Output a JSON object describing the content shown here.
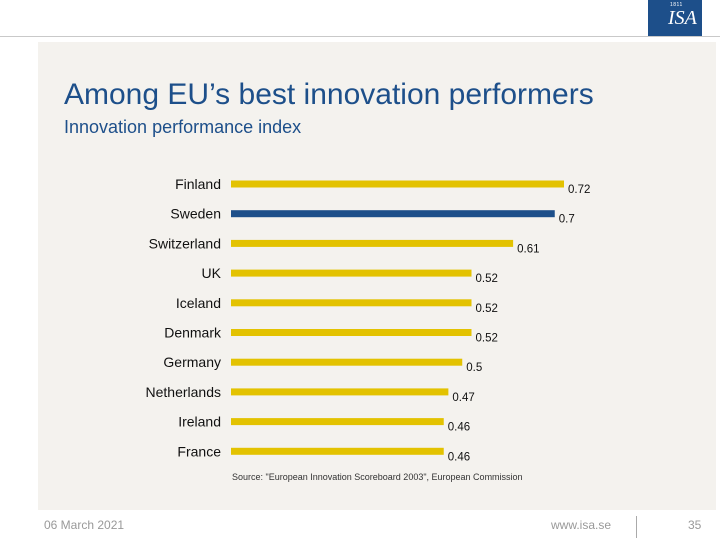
{
  "logo": {
    "small_text": "1811",
    "mark": "ISA"
  },
  "slide": {
    "title": "Among EU’s best innovation performers",
    "subtitle": "Innovation performance index"
  },
  "chart_data": {
    "type": "bar",
    "orientation": "horizontal",
    "title": "Innovation performance index",
    "categories": [
      "Finland",
      "Sweden",
      "Switzerland",
      "UK",
      "Iceland",
      "Denmark",
      "Germany",
      "Netherlands",
      "Ireland",
      "France"
    ],
    "values": [
      0.72,
      0.7,
      0.61,
      0.52,
      0.52,
      0.52,
      0.5,
      0.47,
      0.46,
      0.46
    ],
    "value_labels": [
      "0.72",
      "0.7",
      "0.61",
      "0.52",
      "0.52",
      "0.52",
      "0.5",
      "0.47",
      "0.46",
      "0.46"
    ],
    "highlight": "Sweden",
    "colors": {
      "default": "#e3c200",
      "highlight": "#1d4f8a"
    },
    "xlim": [
      0,
      0.72
    ],
    "grid": false,
    "legend": "none"
  },
  "source": "Source: \"European Innovation Scoreboard 2003\", European Commission",
  "footer": {
    "date": "06 March 2021",
    "url": "www.isa.se",
    "page": "35"
  }
}
